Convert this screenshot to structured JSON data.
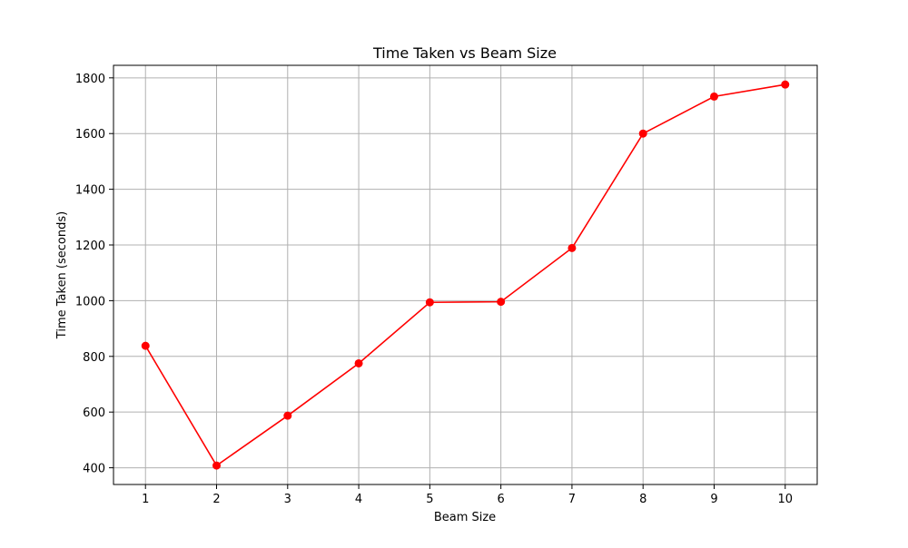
{
  "chart_data": {
    "type": "line",
    "title": "Time Taken vs Beam Size",
    "xlabel": "Beam Size",
    "ylabel": "Time Taken (seconds)",
    "x": [
      1,
      2,
      3,
      4,
      5,
      6,
      7,
      8,
      9,
      10
    ],
    "series": [
      {
        "values": [
          838,
          408,
          587,
          775,
          994,
          996,
          1189,
          1600,
          1733,
          1776
        ],
        "color": "#ff0000",
        "marker": "circle"
      }
    ],
    "xlim": [
      0.55,
      10.45
    ],
    "ylim": [
      340,
      1845
    ],
    "xticks": [
      "1",
      "2",
      "3",
      "4",
      "5",
      "6",
      "7",
      "8",
      "9",
      "10"
    ],
    "yticks": [
      "400",
      "600",
      "800",
      "1000",
      "1200",
      "1400",
      "1600",
      "1800"
    ],
    "grid": true,
    "legend": "none"
  }
}
